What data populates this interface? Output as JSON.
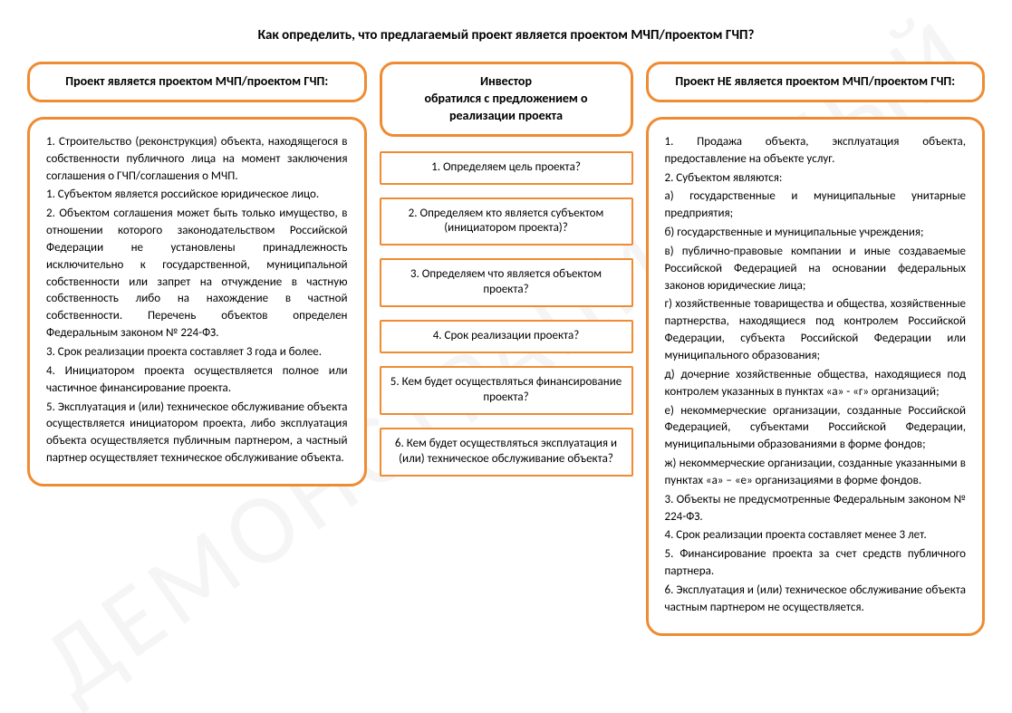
{
  "title": "Как определить, что предлагаемый проект является проектом МЧП/проектом ГЧП?",
  "styling": {
    "border_color": "#ef8b32",
    "border_width_header": 3,
    "border_width_step": 2.5,
    "border_radius_rounded": 18,
    "border_radius_step": 2,
    "font_family": "Calibri",
    "title_fontsize": 15,
    "header_fontsize": 14,
    "body_fontsize": 13,
    "background_color": "#ffffff",
    "text_color": "#000000",
    "watermark_color": "rgba(0,0,0,0.04)",
    "watermark_rotate_deg": -35
  },
  "left": {
    "header": "Проект является проектом МЧП/проектом ГЧП:",
    "body": "1. Строительство (реконструкция) объекта, находящегося в собственности публичного лица на момент заключения соглашения о ГЧП/соглашения о МЧП.\n1. Субъектом является российское юридическое лицо.\n2. Объектом соглашения может быть только имущество, в отношении которого законодательством Российской Федерации не установлены принадлежность исключительно к государственной, муниципальной собственности или запрет на отчуждение в частную собственность либо на нахождение в частной собственности. Перечень объектов определен Федеральным законом № 224-ФЗ.\n3. Срок реализации проекта составляет 3 года и более.\n4. Инициатором проекта осуществляется полное или частичное финансирование проекта.\n5. Эксплуатация и (или) техническое обслуживание объекта осуществляется инициатором проекта, либо эксплуатация объекта осуществляется публичным партнером, а частный партнер осуществляет техническое обслуживание объекта."
  },
  "middle": {
    "header": "Инвестор\nобратился с предложением о реализации проекта",
    "steps": [
      "1.   Определяем цель проекта?",
      "2. Определяем кто является субъектом (инициатором проекта)?",
      "3. Определяем что является объектом проекта?",
      "4. Срок реализации проекта?",
      "5. Кем будет осуществляться финансирование проекта?",
      "6. Кем будет осуществляться эксплуатация и (или) техническое обслуживание объекта?"
    ]
  },
  "right": {
    "header": "Проект НЕ является проектом МЧП/проектом ГЧП:",
    "body": "1. Продажа объекта, эксплуатация объекта, предоставление на объекте услуг.\n2. Субъектом являются:\nа) государственные и муниципальные унитарные предприятия;\nб) государственные и муниципальные учреждения;\nв) публично-правовые компании и иные создаваемые Российской Федерацией на основании федеральных законов юридические лица;\nг) хозяйственные товарищества и общества, хозяйственные партнерства, находящиеся под контролем Российской Федерации, субъекта Российской Федерации или муниципального образования;\nд) дочерние хозяйственные общества, находящиеся под контролем указанных в пунктах «а» - «г» организаций;\nе) некоммерческие организации, созданные Российской Федерацией, субъектами Российской Федерации, муниципальными образованиями в форме фондов;\nж) некоммерческие организации, созданные указанными в пунктах «а» – «е» организациями в форме фондов.\n3. Объекты не предусмотренные Федеральным законом № 224-ФЗ.\n4. Срок реализации проекта составляет менее 3 лет.\n5. Финансирование проекта за счет средств публичного партнера.\n6. Эксплуатация и (или) техническое обслуживание объекта частным партнером не осуществляется."
  },
  "watermark_text": "ДЕМОНСТРАЦИОННЫЙ"
}
